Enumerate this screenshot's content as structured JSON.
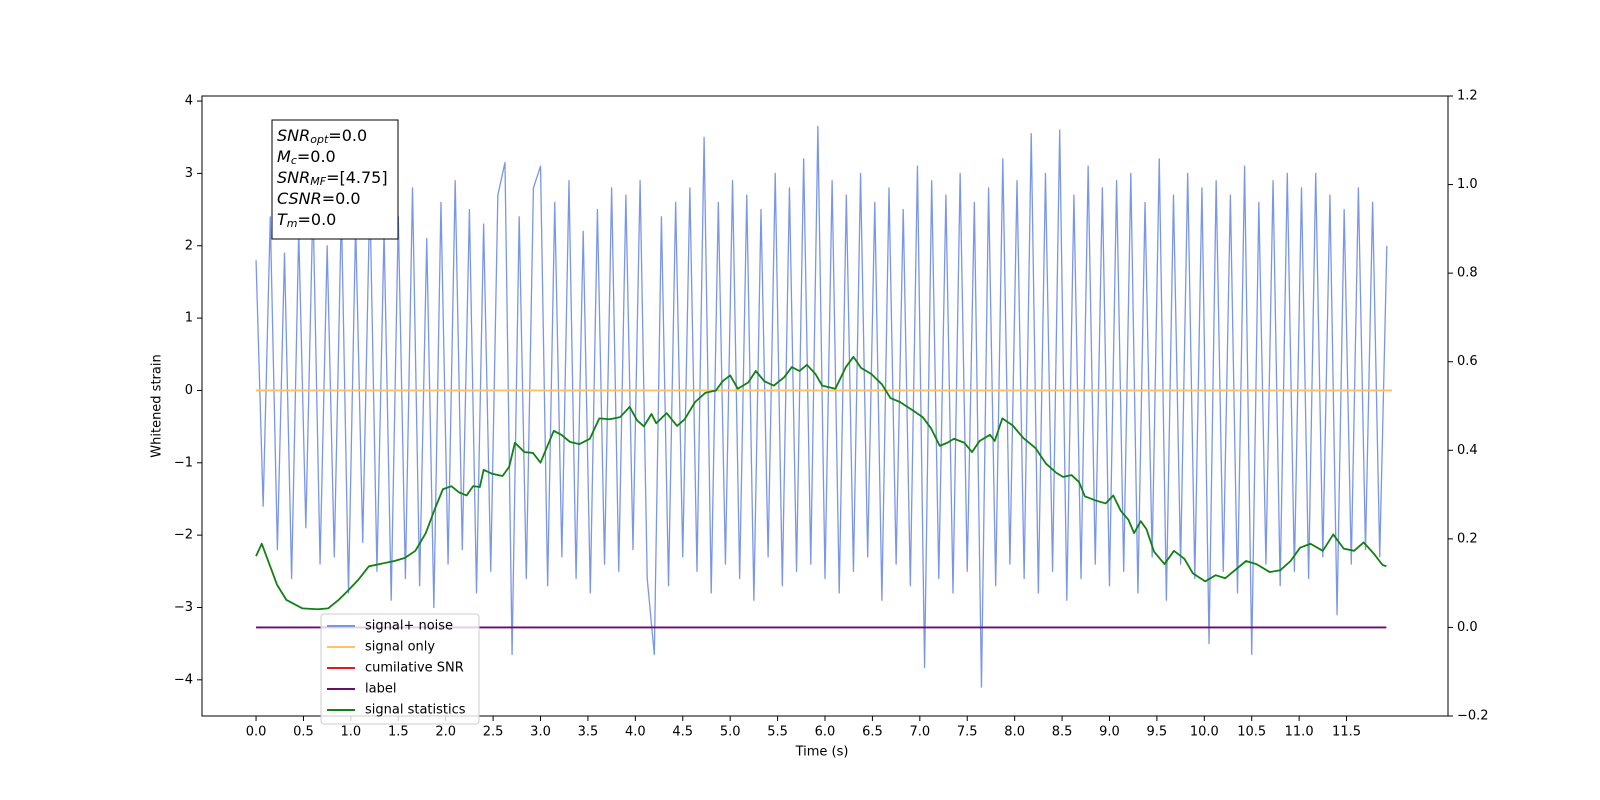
{
  "chart_data": {
    "type": "line",
    "xlabel": "Time (s)",
    "ylabel": "Whitened strain",
    "xlim": [
      -0.57,
      12.57
    ],
    "ylim": [
      -4.5,
      4.07
    ],
    "y2lim": [
      -0.2,
      1.2
    ],
    "xticks": [
      {
        "value": 0,
        "label": "0.0"
      },
      0.5,
      {
        "value": 1,
        "label": "1.0"
      },
      1.5,
      {
        "value": 2,
        "label": "2.0"
      },
      2.5,
      {
        "value": 3,
        "label": "3.0"
      },
      3.5,
      {
        "value": 4,
        "label": "4.0"
      },
      4.5,
      {
        "value": 5,
        "label": "5.0"
      },
      5.5,
      {
        "value": 6,
        "label": "6.0"
      },
      6.5,
      {
        "value": 7,
        "label": "7.0"
      },
      7.5,
      {
        "value": 8,
        "label": "8.0"
      },
      8.5,
      {
        "value": 9,
        "label": "9.0"
      },
      9.5,
      {
        "value": 10,
        "label": "10.0"
      },
      10.5,
      {
        "value": 11,
        "label": "11.0"
      },
      11.5
    ],
    "yticks": [
      {
        "value": -4,
        "label": "−4"
      },
      {
        "value": -3,
        "label": "−3"
      },
      {
        "value": -2,
        "label": "−2"
      },
      {
        "value": -1,
        "label": "−1"
      },
      0,
      1,
      2,
      3,
      4
    ],
    "y2ticks": [
      {
        "value": -0.2,
        "label": "−0.2"
      },
      {
        "value": 0,
        "label": "0.0"
      },
      0.2,
      0.4,
      0.6,
      0.8,
      {
        "value": 1,
        "label": "1.0"
      },
      1.2
    ],
    "annotation": [
      {
        "symbol": "SNR",
        "sub": "opt",
        "text": "=0.0"
      },
      {
        "symbol": "M",
        "sub": "c",
        "text": "=0.0"
      },
      {
        "symbol": "SNR",
        "sub": "MF",
        "text": "=[4.75]"
      },
      {
        "symbol": "CSNR",
        "sub": null,
        "text": "=0.0"
      },
      {
        "symbol": "T",
        "sub": "m",
        "text": "=0.0"
      }
    ],
    "series": [
      {
        "name": "signal+ noise",
        "color": "#7a96e8",
        "x": [
          0,
          0.075,
          0.15,
          0.225,
          0.3,
          0.375,
          0.45,
          0.525,
          0.6,
          0.675,
          0.75,
          0.825,
          0.9,
          0.975,
          1.05,
          1.125,
          1.2,
          1.275,
          1.35,
          1.425,
          1.5,
          1.575,
          1.65,
          1.725,
          1.8,
          1.875,
          1.95,
          2.025,
          2.1,
          2.175,
          2.25,
          2.325,
          2.4,
          2.475,
          2.55,
          2.625,
          2.7,
          2.775,
          2.85,
          2.925,
          3.0,
          3.075,
          3.15,
          3.225,
          3.3,
          3.375,
          3.45,
          3.525,
          3.6,
          3.675,
          3.75,
          3.825,
          3.9,
          3.975,
          4.05,
          4.125,
          4.2,
          4.275,
          4.35,
          4.425,
          4.5,
          4.575,
          4.65,
          4.725,
          4.8,
          4.875,
          4.95,
          5.025,
          5.1,
          5.175,
          5.25,
          5.325,
          5.4,
          5.475,
          5.55,
          5.625,
          5.7,
          5.775,
          5.85,
          5.925,
          6.0,
          6.075,
          6.15,
          6.225,
          6.3,
          6.375,
          6.45,
          6.525,
          6.6,
          6.675,
          6.75,
          6.825,
          6.9,
          6.975,
          7.05,
          7.125,
          7.2,
          7.275,
          7.35,
          7.425,
          7.5,
          7.575,
          7.65,
          7.725,
          7.8,
          7.875,
          7.95,
          8.025,
          8.1,
          8.175,
          8.25,
          8.325,
          8.4,
          8.475,
          8.55,
          8.625,
          8.7,
          8.775,
          8.85,
          8.925,
          9.0,
          9.075,
          9.15,
          9.225,
          9.3,
          9.375,
          9.45,
          9.525,
          9.6,
          9.675,
          9.75,
          9.825,
          9.9,
          9.975,
          10.05,
          10.125,
          10.2,
          10.275,
          10.35,
          10.425,
          10.5,
          10.575,
          10.65,
          10.725,
          10.8,
          10.875,
          10.95,
          11.025,
          11.1,
          11.175,
          11.25,
          11.325,
          11.4,
          11.475,
          11.55,
          11.625,
          11.7,
          11.775,
          11.85,
          11.925
        ],
        "values": [
          1.8,
          -1.6,
          2.4,
          -2.2,
          1.9,
          -2.6,
          2.2,
          -1.9,
          2.6,
          -2.4,
          2.0,
          -2.3,
          2.5,
          -2.8,
          2.3,
          -2.1,
          2.7,
          -2.5,
          2.2,
          -2.9,
          2.4,
          -2.6,
          2.8,
          -2.7,
          2.1,
          -3.0,
          2.6,
          -2.4,
          2.9,
          -2.2,
          2.5,
          -2.8,
          2.3,
          -2.5,
          2.7,
          3.15,
          -3.65,
          2.4,
          -2.6,
          2.8,
          3.1,
          -2.7,
          2.6,
          -2.3,
          2.9,
          -2.6,
          2.2,
          -2.8,
          2.5,
          -2.4,
          2.8,
          -2.5,
          2.7,
          -2.2,
          2.9,
          -2.6,
          -3.65,
          2.4,
          -2.7,
          2.6,
          -2.3,
          2.8,
          -2.5,
          3.5,
          -2.8,
          2.6,
          -2.4,
          2.9,
          -2.6,
          2.7,
          -2.9,
          2.5,
          -2.3,
          3.0,
          -2.7,
          2.8,
          -2.5,
          3.2,
          -2.4,
          3.65,
          -2.6,
          2.9,
          -2.8,
          2.7,
          -2.5,
          3.0,
          -2.3,
          2.6,
          -2.9,
          2.8,
          -2.4,
          2.5,
          -2.7,
          3.1,
          -3.83,
          2.9,
          -2.6,
          2.7,
          -2.8,
          3.0,
          -2.5,
          2.6,
          -4.1,
          2.8,
          -2.7,
          3.2,
          -2.4,
          2.9,
          -2.6,
          3.55,
          -2.8,
          3.0,
          -2.5,
          3.6,
          -2.9,
          2.7,
          -2.6,
          3.1,
          -2.4,
          2.8,
          -2.7,
          2.9,
          -2.5,
          3.0,
          -2.8,
          2.6,
          -2.3,
          3.2,
          -2.9,
          2.7,
          -2.4,
          3.0,
          -2.6,
          2.8,
          -3.5,
          2.9,
          -2.5,
          2.7,
          -2.8,
          3.1,
          -3.65,
          2.6,
          -2.4,
          2.9,
          -2.7,
          3.0,
          -2.5,
          2.8,
          -2.6,
          3.0,
          -2.3,
          2.7,
          -3.1,
          2.5,
          -2.4,
          2.8,
          -2.2,
          2.6,
          -2.3,
          2.0
        ]
      },
      {
        "name": "signal only",
        "color": "#ffc266",
        "x": [
          0,
          11.98
        ],
        "values": [
          0,
          0
        ]
      },
      {
        "name": "cumilative SNR",
        "color": "#e41a1c",
        "x": [],
        "values": []
      },
      {
        "name": "label",
        "color": "#6a0d6a",
        "axis": "y2",
        "x": [
          0,
          11.92
        ],
        "values": [
          0,
          0
        ]
      },
      {
        "name": "signal statistics",
        "color": "#138013",
        "axis": "y2",
        "x": [
          0,
          0.06,
          0.14,
          0.22,
          0.32,
          0.49,
          0.65,
          0.76,
          0.87,
          0.97,
          1.08,
          1.19,
          1.3,
          1.46,
          1.57,
          1.68,
          1.79,
          1.89,
          1.97,
          2.06,
          2.14,
          2.22,
          2.29,
          2.36,
          2.4,
          2.49,
          2.6,
          2.67,
          2.73,
          2.83,
          2.92,
          3.0,
          3.06,
          3.14,
          3.22,
          3.31,
          3.41,
          3.52,
          3.62,
          3.73,
          3.84,
          3.94,
          4.02,
          4.09,
          4.17,
          4.22,
          4.33,
          4.44,
          4.52,
          4.63,
          4.74,
          4.85,
          4.92,
          5.0,
          5.08,
          5.19,
          5.27,
          5.36,
          5.46,
          5.57,
          5.65,
          5.73,
          5.81,
          5.9,
          5.97,
          6.11,
          6.22,
          6.3,
          6.38,
          6.49,
          6.6,
          6.69,
          6.79,
          6.92,
          7.03,
          7.12,
          7.21,
          7.29,
          7.36,
          7.47,
          7.55,
          7.63,
          7.74,
          7.79,
          7.87,
          7.98,
          8.09,
          8.22,
          8.33,
          8.44,
          8.51,
          8.6,
          8.68,
          8.74,
          8.85,
          8.96,
          9.04,
          9.12,
          9.2,
          9.26,
          9.33,
          9.39,
          9.47,
          9.58,
          9.68,
          9.79,
          9.88,
          10.01,
          10.12,
          10.22,
          10.31,
          10.44,
          10.55,
          10.69,
          10.8,
          10.91,
          11.01,
          11.12,
          11.25,
          11.36,
          11.47,
          11.58,
          11.68,
          11.79,
          11.88,
          11.92
        ],
        "values": [
          0.161,
          0.189,
          0.143,
          0.097,
          0.062,
          0.043,
          0.041,
          0.043,
          0.062,
          0.083,
          0.108,
          0.138,
          0.143,
          0.15,
          0.157,
          0.173,
          0.213,
          0.27,
          0.312,
          0.319,
          0.305,
          0.298,
          0.319,
          0.317,
          0.356,
          0.347,
          0.342,
          0.363,
          0.417,
          0.396,
          0.394,
          0.372,
          0.403,
          0.444,
          0.435,
          0.419,
          0.414,
          0.426,
          0.472,
          0.47,
          0.475,
          0.498,
          0.467,
          0.454,
          0.482,
          0.461,
          0.484,
          0.455,
          0.47,
          0.509,
          0.53,
          0.535,
          0.556,
          0.569,
          0.539,
          0.553,
          0.579,
          0.556,
          0.546,
          0.565,
          0.588,
          0.579,
          0.593,
          0.572,
          0.546,
          0.539,
          0.588,
          0.611,
          0.586,
          0.572,
          0.549,
          0.518,
          0.509,
          0.491,
          0.475,
          0.449,
          0.41,
          0.417,
          0.426,
          0.417,
          0.396,
          0.421,
          0.435,
          0.421,
          0.472,
          0.456,
          0.428,
          0.405,
          0.37,
          0.349,
          0.34,
          0.344,
          0.328,
          0.296,
          0.287,
          0.28,
          0.298,
          0.263,
          0.243,
          0.213,
          0.24,
          0.222,
          0.171,
          0.143,
          0.173,
          0.155,
          0.122,
          0.104,
          0.118,
          0.111,
          0.127,
          0.15,
          0.143,
          0.125,
          0.129,
          0.15,
          0.18,
          0.189,
          0.173,
          0.21,
          0.178,
          0.173,
          0.192,
          0.166,
          0.141,
          0.138
        ]
      }
    ]
  }
}
